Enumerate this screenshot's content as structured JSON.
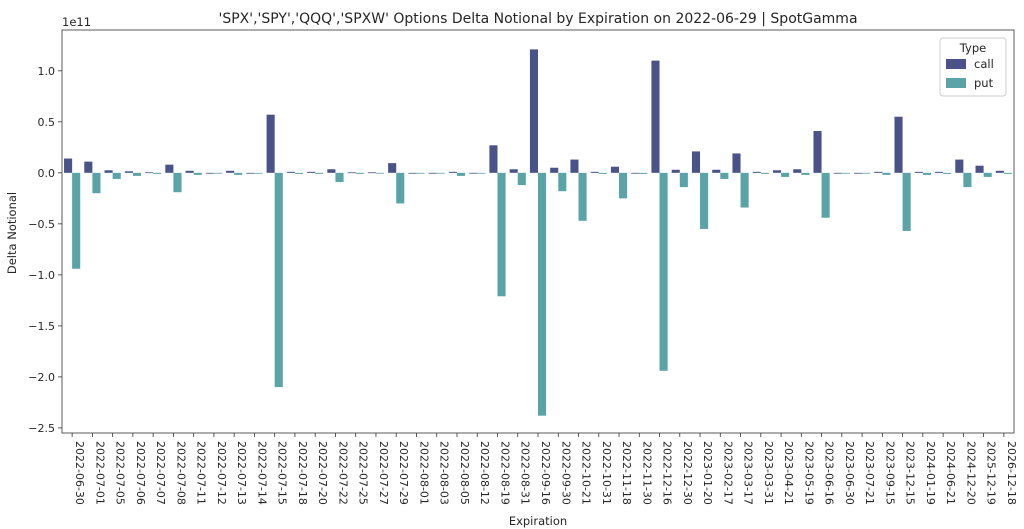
{
  "chart_data": {
    "type": "bar",
    "title": "'SPX','SPY','QQQ','SPXW' Options Delta Notional by Expiration on 2022-06-29 | SpotGamma",
    "xlabel": "Expiration",
    "ylabel": "Delta Notional",
    "y_offset_label": "1e11",
    "y_scale": 100000000000,
    "ylim": [
      -2.55,
      1.4
    ],
    "yticks": [
      -2.5,
      -2.0,
      -1.5,
      -1.0,
      -0.5,
      0.0,
      0.5,
      1.0
    ],
    "ytick_labels": [
      "−2.5",
      "−2.0",
      "−1.5",
      "−1.0",
      "−0.5",
      "0.0",
      "0.5",
      "1.0"
    ],
    "legend": {
      "title": "Type",
      "position": "top-right"
    },
    "categories": [
      "2022-06-30",
      "2022-07-01",
      "2022-07-05",
      "2022-07-06",
      "2022-07-07",
      "2022-07-08",
      "2022-07-11",
      "2022-07-12",
      "2022-07-13",
      "2022-07-14",
      "2022-07-15",
      "2022-07-18",
      "2022-07-20",
      "2022-07-22",
      "2022-07-25",
      "2022-07-27",
      "2022-07-29",
      "2022-08-01",
      "2022-08-03",
      "2022-08-05",
      "2022-08-12",
      "2022-08-19",
      "2022-08-31",
      "2022-09-16",
      "2022-09-30",
      "2022-10-21",
      "2022-10-31",
      "2022-11-18",
      "2022-11-30",
      "2022-12-16",
      "2022-12-30",
      "2023-01-20",
      "2023-02-17",
      "2023-03-17",
      "2023-03-31",
      "2023-04-21",
      "2023-05-19",
      "2023-06-16",
      "2023-06-30",
      "2023-07-21",
      "2023-09-15",
      "2023-12-15",
      "2024-01-19",
      "2024-06-21",
      "2024-12-20",
      "2025-12-19",
      "2026-12-18"
    ],
    "series": [
      {
        "name": "call",
        "color": "#4a5388",
        "values": [
          0.14,
          0.11,
          0.025,
          0.015,
          0.005,
          0.08,
          0.02,
          0.0,
          0.02,
          0.0,
          0.57,
          0.01,
          0.01,
          0.035,
          0.005,
          0.005,
          0.095,
          0.0,
          0.0,
          0.01,
          0.0,
          0.27,
          0.035,
          1.21,
          0.05,
          0.13,
          0.01,
          0.06,
          0.0,
          1.1,
          0.03,
          0.21,
          0.03,
          0.19,
          0.01,
          0.025,
          0.035,
          0.41,
          0.0,
          0.0,
          0.01,
          0.55,
          0.01,
          0.01,
          0.13,
          0.07,
          0.02
        ]
      },
      {
        "name": "put",
        "color": "#5aa3a7",
        "values": [
          -0.94,
          -0.2,
          -0.06,
          -0.03,
          -0.01,
          -0.19,
          -0.02,
          0.0,
          -0.02,
          0.0,
          -2.1,
          -0.01,
          -0.01,
          -0.09,
          -0.01,
          -0.005,
          -0.3,
          0.0,
          0.0,
          -0.03,
          0.0,
          -1.21,
          -0.12,
          -2.38,
          -0.18,
          -0.47,
          -0.01,
          -0.25,
          -0.01,
          -1.94,
          -0.14,
          -0.55,
          -0.06,
          -0.34,
          -0.01,
          -0.04,
          -0.02,
          -0.44,
          0.0,
          0.0,
          -0.02,
          -0.57,
          -0.02,
          -0.01,
          -0.14,
          -0.04,
          -0.01
        ]
      }
    ]
  }
}
